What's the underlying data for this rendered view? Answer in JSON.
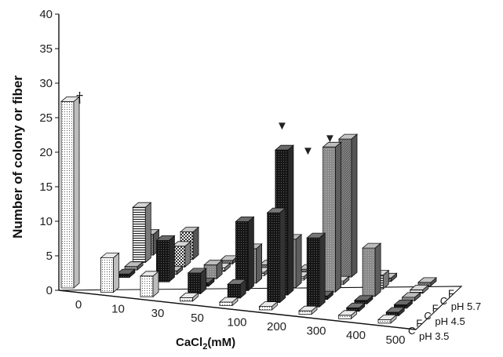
{
  "chart_data": {
    "type": "bar3d",
    "ylabel": "Number of colony or fiber",
    "xlabel_main": "CaCl",
    "xlabel_sub": "2",
    "xlabel_unit": "(mM)",
    "ylim": [
      0,
      40
    ],
    "yticks": [
      "0",
      "5",
      "10",
      "15",
      "20",
      "25",
      "30",
      "35",
      "40"
    ],
    "categories": [
      "0",
      "10",
      "30",
      "50",
      "100",
      "200",
      "300",
      "400",
      "500"
    ],
    "rows": [
      {
        "type": "C",
        "ph": "pH 3.5",
        "values": [
          27,
          5,
          3,
          0.5,
          0.5,
          0.5,
          0.5,
          0.5,
          0.5
        ]
      },
      {
        "type": "F",
        "ph": "",
        "values": [
          0,
          0,
          0,
          3,
          2,
          13,
          10,
          0.5,
          0.5
        ]
      },
      {
        "type": "C",
        "ph": "pH 4.5",
        "values": [
          0,
          0.5,
          6,
          0.5,
          10,
          21,
          0.5,
          0.5,
          0.5
        ]
      },
      {
        "type": "F",
        "ph": "",
        "values": [
          0,
          0.5,
          0.5,
          2,
          5,
          7,
          21,
          7,
          0.5
        ]
      },
      {
        "type": "C",
        "ph": "pH 5.7",
        "values": [
          0,
          8,
          3,
          0.5,
          0.5,
          0.5,
          0.5,
          2,
          0.5
        ]
      },
      {
        "type": "F",
        "ph": "",
        "values": [
          0,
          3,
          4,
          0.5,
          0.5,
          0.5,
          20,
          0.5,
          0.5
        ]
      }
    ],
    "markers": {
      "dagger": "†",
      "triangle": "▼"
    }
  }
}
